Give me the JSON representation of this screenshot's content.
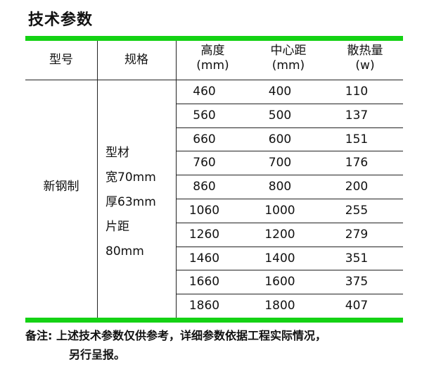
{
  "title": "技术参数",
  "colors": {
    "accent": "#14d214"
  },
  "table": {
    "headers": [
      {
        "line1": "型号",
        "line2": ""
      },
      {
        "line1": "规格",
        "line2": ""
      },
      {
        "line1": "高度",
        "line2": "(mm)"
      },
      {
        "line1": "中心距",
        "line2": "(mm)"
      },
      {
        "line1": "散热量",
        "line2": "(w)"
      }
    ],
    "model": "新钢制",
    "spec": [
      "型材",
      "宽70mm",
      "厚63mm",
      "片距",
      "80mm"
    ],
    "rows": [
      [
        "460",
        "400",
        "110"
      ],
      [
        "560",
        "500",
        "137"
      ],
      [
        "660",
        "600",
        "151"
      ],
      [
        "760",
        "700",
        "176"
      ],
      [
        "860",
        "800",
        "200"
      ],
      [
        "1060",
        "1000",
        "255"
      ],
      [
        "1260",
        "1200",
        "279"
      ],
      [
        "1460",
        "1400",
        "351"
      ],
      [
        "1660",
        "1600",
        "375"
      ],
      [
        "1860",
        "1800",
        "407"
      ]
    ]
  },
  "note": {
    "label": "备注:",
    "line1": "上述技术参数仅供参考，详细参数依据工程实际情况，",
    "line2": "另行呈报。"
  }
}
